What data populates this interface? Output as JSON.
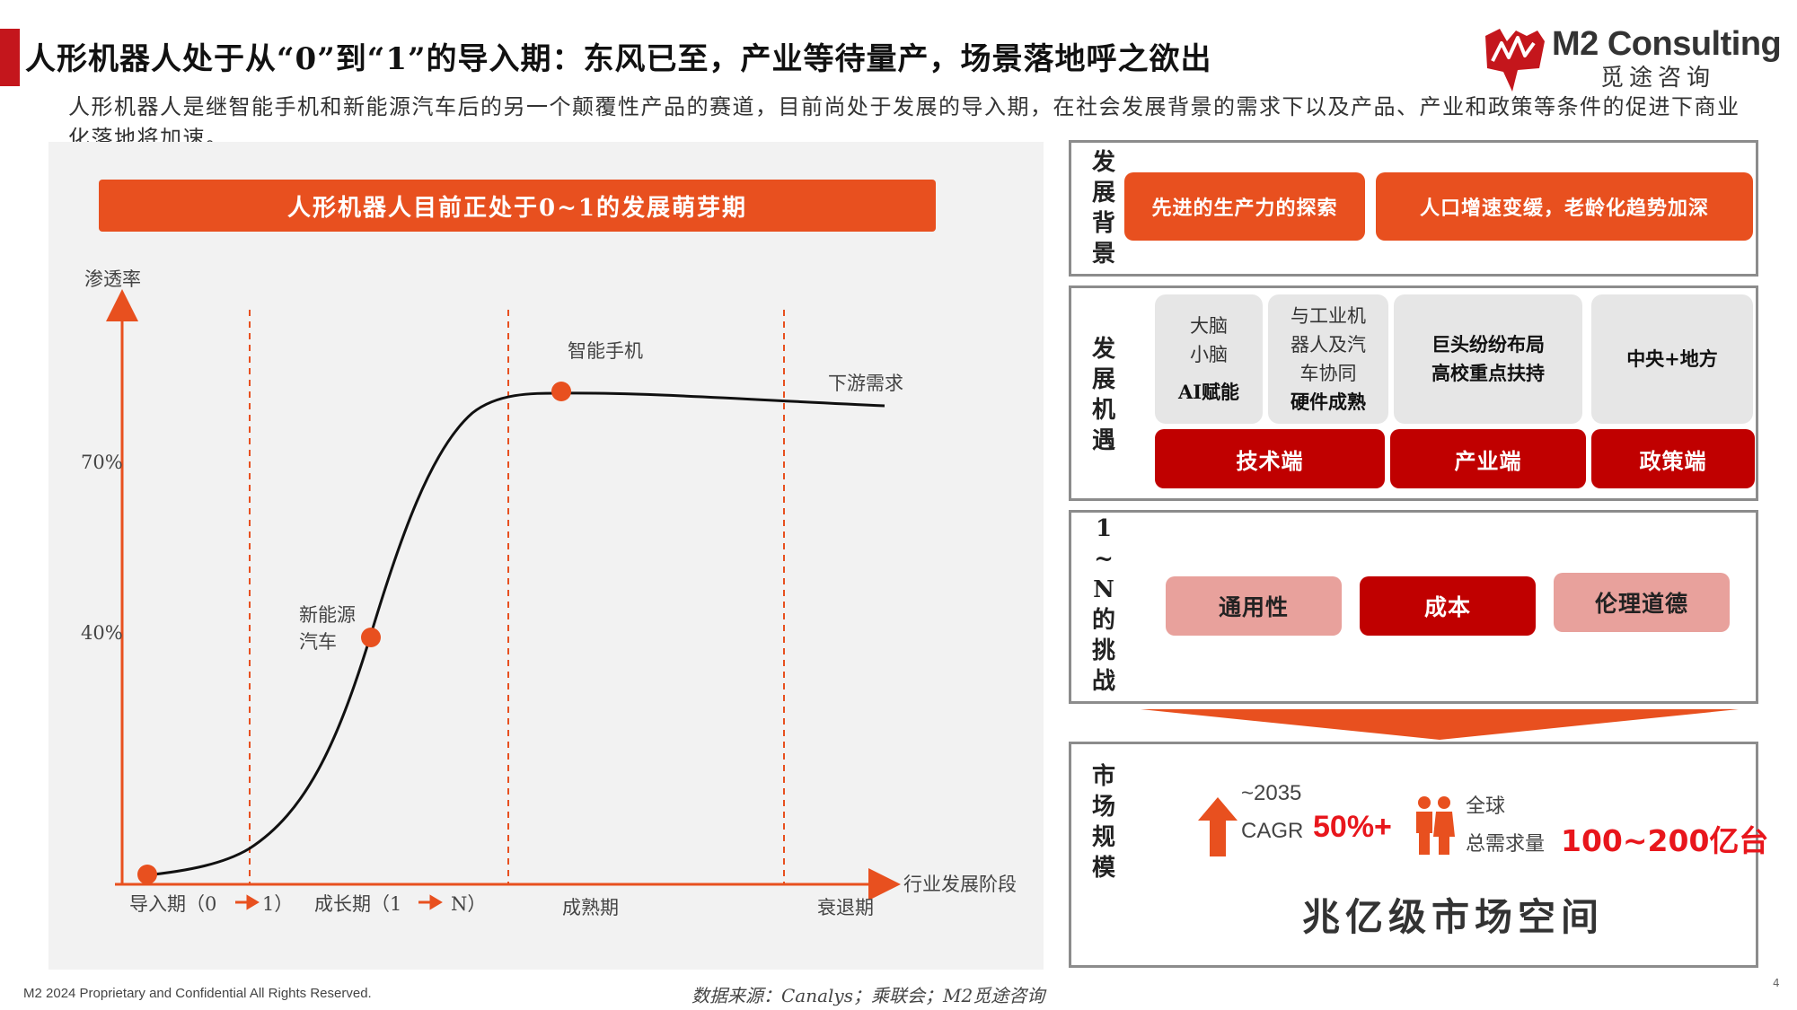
{
  "header": {
    "title": "人形机器人处于从“0”到“1”的导入期：东风已至，产业等待量产，场景落地呼之欲出",
    "subtitle": "人形机器人是继智能手机和新能源汽车后的另一个颠覆性产品的赛道，目前尚处于发展的导入期，在社会发展背景的需求下以及产品、产业和政策等条件的促进下商业化落地将加速。"
  },
  "logo": {
    "en": "M2 Consulting",
    "cn": "觅途咨询"
  },
  "left_panel": {
    "banner": "人形机器人目前正处于0~1的发展萌芽期",
    "y_axis_label": "渗透率",
    "x_axis_label": "行业发展阶段",
    "y_ticks": [
      "70%",
      "40%"
    ],
    "stages": [
      "导入期（0",
      "1）",
      "成长期（1",
      "N）",
      "成熟期",
      "衰退期"
    ],
    "points": [
      {
        "label_line1": "新能源",
        "label_line2": "汽车"
      },
      {
        "label_line1": "智能手机"
      },
      {
        "label_line1": "下游需求"
      }
    ]
  },
  "right_panel": {
    "background": {
      "label": [
        "发",
        "展",
        "背",
        "景"
      ],
      "items": [
        "先进的生产力的探索",
        "人口增速变缓，老龄化趋势加深"
      ]
    },
    "opportunity": {
      "label": [
        "发",
        "展",
        "机",
        "遇"
      ],
      "cards": [
        {
          "lines": [
            "大脑",
            "小脑"
          ],
          "bold": "AI赋能"
        },
        {
          "lines": [
            "与工业机",
            "器人及汽",
            "车协同"
          ],
          "bold": "硬件成熟"
        },
        {
          "lines": [],
          "bold_lines": [
            "巨头纷纷布局",
            "高校重点扶持"
          ]
        },
        {
          "lines": [],
          "bold_lines": [
            "中央+地方"
          ]
        }
      ],
      "ends": [
        "技术端",
        "产业端",
        "政策端"
      ]
    },
    "challenges": {
      "label": [
        "1",
        "~",
        "N",
        "的",
        "挑",
        "战"
      ],
      "items": [
        "通用性",
        "成本",
        "伦理道德"
      ]
    },
    "market": {
      "label": [
        "市",
        "场",
        "规",
        "模"
      ],
      "year": "~2035",
      "cagr_label": "CAGR",
      "cagr_value": "50%+",
      "scope": "全球",
      "demand_label": "总需求量",
      "demand_value": "100~200亿台",
      "summary": "兆亿级市场空间"
    }
  },
  "footer": {
    "copyright": "M2  2024 Proprietary and Confidential All Rights Reserved.",
    "source": "数据来源：Canalys；乘联会；M2觅途咨询",
    "page": "4"
  },
  "colors": {
    "accent": "#e8501f",
    "dark_red": "#c00000",
    "pink": "#e8a19c",
    "brand_red": "#c4161c"
  }
}
